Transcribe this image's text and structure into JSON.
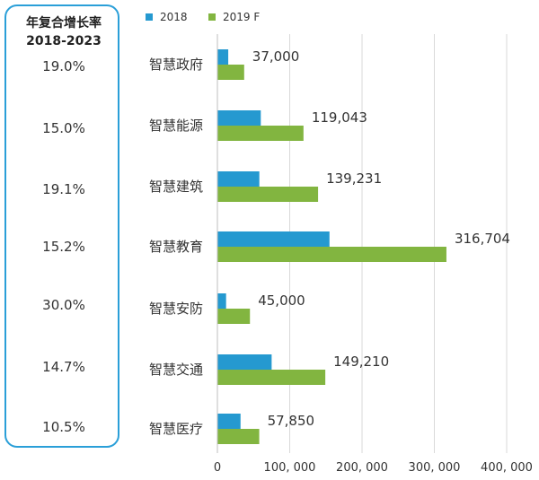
{
  "cagr": {
    "title_line1": "年复合增长率",
    "title_line2": "2018-2023",
    "values": [
      "19.0%",
      "15.0%",
      "19.1%",
      "15.2%",
      "30.0%",
      "14.7%",
      "10.5%"
    ]
  },
  "colors": {
    "series_2018": "#2599d0",
    "series_2019": "#82b540",
    "grid": "#d9d9d9",
    "border": "#2a9fd8"
  },
  "chart_data": {
    "type": "bar",
    "orientation": "horizontal",
    "categories": [
      "智慧政府",
      "智慧能源",
      "智慧建筑",
      "智慧教育",
      "智慧安防",
      "智慧交通",
      "智慧医疗"
    ],
    "series": [
      {
        "name": "2018",
        "values": [
          15000,
          60000,
          58000,
          155000,
          12000,
          75000,
          32000
        ]
      },
      {
        "name": "2019 F",
        "values": [
          37000,
          119043,
          139231,
          316704,
          45000,
          149210,
          57850
        ]
      }
    ],
    "data_labels": [
      "37,000",
      "119,043",
      "139,231",
      "316,704",
      "45,000",
      "149,210",
      "57,850"
    ],
    "x_ticks": [
      "0",
      "100, 000",
      "200, 000",
      "300, 000",
      "400, 000"
    ],
    "xlim": [
      0,
      400000
    ],
    "grid": true,
    "legend_position": "top-left"
  }
}
